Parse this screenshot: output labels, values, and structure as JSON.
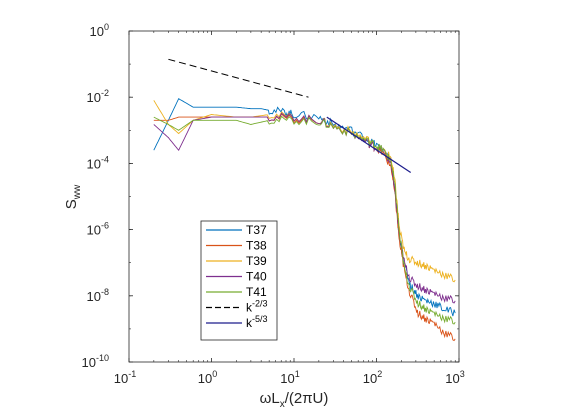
{
  "chart_data": {
    "type": "line",
    "title": "",
    "x_scale": "log",
    "y_scale": "log",
    "xlim": [
      0.1,
      1000
    ],
    "ylim": [
      1e-10,
      1
    ],
    "grid": false,
    "legend_position": "bottom-left",
    "x_ticks": [
      {
        "base": "10",
        "exp": "-1"
      },
      {
        "base": "10",
        "exp": "0"
      },
      {
        "base": "10",
        "exp": "1"
      },
      {
        "base": "10",
        "exp": "2"
      },
      {
        "base": "10",
        "exp": "3"
      }
    ],
    "y_ticks": [
      {
        "base": "10",
        "exp": "0"
      },
      {
        "base": "10",
        "exp": "-2"
      },
      {
        "base": "10",
        "exp": "-4"
      },
      {
        "base": "10",
        "exp": "-6"
      },
      {
        "base": "10",
        "exp": "-8"
      },
      {
        "base": "10",
        "exp": "-10"
      }
    ],
    "xlabel": {
      "pre": "ωL",
      "sub": "x",
      "post": "/(2πU)"
    },
    "ylabel": {
      "pre": "S",
      "sub": "ww"
    },
    "series": [
      {
        "name": "T37",
        "color": "#0072BD",
        "style": "solid",
        "points": [
          [
            0.2,
            0.00025
          ],
          [
            0.3,
            0.002
          ],
          [
            0.4,
            0.009
          ],
          [
            0.6,
            0.005
          ],
          [
            0.8,
            0.005
          ],
          [
            1,
            0.005
          ],
          [
            1.5,
            0.005
          ],
          [
            2,
            0.005
          ],
          [
            3,
            0.0045
          ],
          [
            4,
            0.0045
          ],
          [
            5,
            0.004
          ],
          [
            8,
            0.0035
          ],
          [
            10,
            0.003
          ],
          [
            20,
            0.0025
          ],
          [
            30,
            0.0015
          ],
          [
            50,
            0.001
          ],
          [
            80,
            0.0005
          ],
          [
            100,
            0.00035
          ],
          [
            120,
            0.00025
          ],
          [
            150,
            0.0001
          ],
          [
            170,
            1e-05
          ],
          [
            190,
            5e-07
          ],
          [
            220,
            8e-08
          ],
          [
            260,
            2e-08
          ],
          [
            320,
            1e-08
          ],
          [
            400,
            7e-09
          ],
          [
            500,
            6e-09
          ],
          [
            650,
            4e-09
          ],
          [
            900,
            3e-09
          ]
        ]
      },
      {
        "name": "T38",
        "color": "#D95319",
        "style": "solid",
        "points": [
          [
            0.2,
            0.002
          ],
          [
            0.3,
            0.002
          ],
          [
            0.4,
            0.0025
          ],
          [
            0.6,
            0.0025
          ],
          [
            1,
            0.0025
          ],
          [
            2,
            0.0025
          ],
          [
            3,
            0.0025
          ],
          [
            5,
            0.0025
          ],
          [
            10,
            0.0022
          ],
          [
            20,
            0.002
          ],
          [
            30,
            0.0013
          ],
          [
            50,
            0.0008
          ],
          [
            80,
            0.0004
          ],
          [
            100,
            0.0003
          ],
          [
            120,
            0.0002
          ],
          [
            150,
            8e-05
          ],
          [
            170,
            8e-06
          ],
          [
            190,
            4e-07
          ],
          [
            220,
            5e-08
          ],
          [
            260,
            1e-08
          ],
          [
            320,
            3e-09
          ],
          [
            400,
            2e-09
          ],
          [
            500,
            1.5e-09
          ],
          [
            650,
            8e-10
          ],
          [
            900,
            5e-10
          ]
        ]
      },
      {
        "name": "T39",
        "color": "#EDB120",
        "style": "solid",
        "points": [
          [
            0.2,
            0.008
          ],
          [
            0.3,
            0.0015
          ],
          [
            0.4,
            0.0008
          ],
          [
            0.6,
            0.002
          ],
          [
            1,
            0.003
          ],
          [
            2,
            0.0025
          ],
          [
            3,
            0.0025
          ],
          [
            5,
            0.003
          ],
          [
            10,
            0.0025
          ],
          [
            20,
            0.002
          ],
          [
            30,
            0.0014
          ],
          [
            50,
            0.0009
          ],
          [
            80,
            0.0005
          ],
          [
            100,
            0.0003
          ],
          [
            120,
            0.00025
          ],
          [
            150,
            0.00015
          ],
          [
            170,
            2e-05
          ],
          [
            190,
            1e-06
          ],
          [
            220,
            2e-07
          ],
          [
            260,
            1.2e-07
          ],
          [
            320,
            1e-07
          ],
          [
            400,
            8e-08
          ],
          [
            500,
            6e-08
          ],
          [
            650,
            4.5e-08
          ],
          [
            900,
            3e-08
          ]
        ]
      },
      {
        "name": "T40",
        "color": "#7E2F8E",
        "style": "solid",
        "points": [
          [
            0.2,
            0.0015
          ],
          [
            0.3,
            0.0006
          ],
          [
            0.4,
            0.00025
          ],
          [
            0.6,
            0.002
          ],
          [
            1,
            0.0025
          ],
          [
            2,
            0.0025
          ],
          [
            3,
            0.0025
          ],
          [
            5,
            0.0025
          ],
          [
            10,
            0.0025
          ],
          [
            20,
            0.002
          ],
          [
            30,
            0.0013
          ],
          [
            50,
            0.0008
          ],
          [
            80,
            0.0004
          ],
          [
            100,
            0.0003
          ],
          [
            120,
            0.00025
          ],
          [
            150,
            0.0001
          ],
          [
            170,
            1e-05
          ],
          [
            190,
            6e-07
          ],
          [
            220,
            9e-08
          ],
          [
            260,
            3e-08
          ],
          [
            320,
            2e-08
          ],
          [
            400,
            1.5e-08
          ],
          [
            500,
            1.2e-08
          ],
          [
            650,
            9e-09
          ],
          [
            900,
            7e-09
          ]
        ]
      },
      {
        "name": "T41",
        "color": "#77AC30",
        "style": "solid",
        "points": [
          [
            0.2,
            0.0025
          ],
          [
            0.3,
            0.0015
          ],
          [
            0.4,
            0.001
          ],
          [
            0.6,
            0.002
          ],
          [
            1,
            0.002
          ],
          [
            2,
            0.002
          ],
          [
            3,
            0.0015
          ],
          [
            5,
            0.002
          ],
          [
            10,
            0.002
          ],
          [
            20,
            0.0018
          ],
          [
            30,
            0.0013
          ],
          [
            50,
            0.0008
          ],
          [
            80,
            0.00045
          ],
          [
            100,
            0.00035
          ],
          [
            120,
            0.00025
          ],
          [
            150,
            0.00012
          ],
          [
            170,
            1.5e-05
          ],
          [
            190,
            7e-07
          ],
          [
            220,
            6e-08
          ],
          [
            260,
            1.5e-08
          ],
          [
            320,
            6e-09
          ],
          [
            400,
            4e-09
          ],
          [
            500,
            3e-09
          ],
          [
            650,
            2.2e-09
          ],
          [
            900,
            1.6e-09
          ]
        ]
      },
      {
        "name": {
          "pre": "k",
          "sup": "-2/3"
        },
        "color": "#000000",
        "style": "dashed",
        "points": [
          [
            0.3,
            0.14
          ],
          [
            15,
            0.01
          ]
        ]
      },
      {
        "name": {
          "pre": "k",
          "sup": "-5/3"
        },
        "color": "#1C1C8C",
        "style": "solid",
        "points": [
          [
            25,
            0.0025
          ],
          [
            260,
            5.3e-05
          ]
        ]
      }
    ]
  }
}
